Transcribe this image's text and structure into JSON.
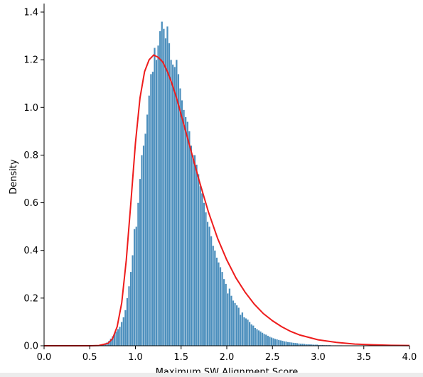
{
  "chart_data": {
    "type": "bar",
    "title": "",
    "xlabel": "Maximum SW Alignment Score",
    "ylabel": "Density",
    "xlim": [
      0.0,
      4.0
    ],
    "ylim": [
      0.0,
      1.42
    ],
    "x_ticks": [
      "0.0",
      "0.5",
      "1.0",
      "1.5",
      "2.0",
      "2.5",
      "3.0",
      "3.5",
      "4.0"
    ],
    "y_ticks": [
      "0.0",
      "0.2",
      "0.4",
      "0.6",
      "0.8",
      "1.0",
      "1.2",
      "1.4"
    ],
    "grid": false,
    "colors": {
      "bars": "#4c8fbd",
      "fit_curve": "#ee1c1c"
    },
    "series": [
      {
        "type": "histogram",
        "bin_width": 0.02,
        "bin_start": 0.58,
        "densities": [
          0.001,
          0.003,
          0.004,
          0.006,
          0.01,
          0.014,
          0.02,
          0.03,
          0.04,
          0.05,
          0.06,
          0.07,
          0.08,
          0.1,
          0.12,
          0.15,
          0.2,
          0.25,
          0.31,
          0.38,
          0.49,
          0.5,
          0.6,
          0.7,
          0.8,
          0.84,
          0.89,
          0.97,
          1.05,
          1.14,
          1.15,
          1.25,
          1.2,
          1.26,
          1.32,
          1.36,
          1.33,
          1.29,
          1.34,
          1.27,
          1.2,
          1.18,
          1.17,
          1.2,
          1.14,
          1.08,
          1.03,
          0.99,
          0.96,
          0.94,
          0.9,
          0.84,
          0.8,
          0.8,
          0.76,
          0.72,
          0.67,
          0.64,
          0.6,
          0.56,
          0.52,
          0.5,
          0.46,
          0.42,
          0.4,
          0.37,
          0.35,
          0.33,
          0.31,
          0.28,
          0.26,
          0.22,
          0.24,
          0.21,
          0.19,
          0.18,
          0.17,
          0.16,
          0.13,
          0.14,
          0.12,
          0.115,
          0.11,
          0.1,
          0.09,
          0.085,
          0.075,
          0.07,
          0.065,
          0.06,
          0.055,
          0.05,
          0.047,
          0.042,
          0.038,
          0.035,
          0.032,
          0.029,
          0.027,
          0.025,
          0.023,
          0.021,
          0.019,
          0.018,
          0.016,
          0.015,
          0.014,
          0.013,
          0.012,
          0.011,
          0.01,
          0.009,
          0.009,
          0.008,
          0.007,
          0.007,
          0.006,
          0.006,
          0.005,
          0.005,
          0.005,
          0.004,
          0.004,
          0.004,
          0.003,
          0.003,
          0.003,
          0.003,
          0.002,
          0.002,
          0.002,
          0.002,
          0.002,
          0.002,
          0.001,
          0.001,
          0.001,
          0.001,
          0.001,
          0.001,
          0.001,
          0.001,
          0.001,
          0.001,
          0.001,
          0.001
        ]
      },
      {
        "type": "line",
        "x": [
          0.0,
          0.5,
          0.6,
          0.7,
          0.75,
          0.8,
          0.85,
          0.9,
          0.95,
          1.0,
          1.05,
          1.1,
          1.15,
          1.2,
          1.25,
          1.3,
          1.35,
          1.4,
          1.45,
          1.5,
          1.55,
          1.6,
          1.7,
          1.8,
          1.9,
          2.0,
          2.1,
          2.2,
          2.3,
          2.4,
          2.5,
          2.6,
          2.7,
          2.8,
          3.0,
          3.2,
          3.4,
          3.6,
          3.8,
          4.0
        ],
        "y": [
          0.0,
          0.0,
          0.001,
          0.01,
          0.03,
          0.08,
          0.18,
          0.36,
          0.6,
          0.85,
          1.04,
          1.15,
          1.2,
          1.22,
          1.21,
          1.19,
          1.15,
          1.1,
          1.04,
          0.97,
          0.9,
          0.83,
          0.69,
          0.56,
          0.45,
          0.36,
          0.285,
          0.225,
          0.175,
          0.135,
          0.105,
          0.08,
          0.06,
          0.045,
          0.025,
          0.014,
          0.007,
          0.004,
          0.002,
          0.001
        ]
      }
    ]
  }
}
